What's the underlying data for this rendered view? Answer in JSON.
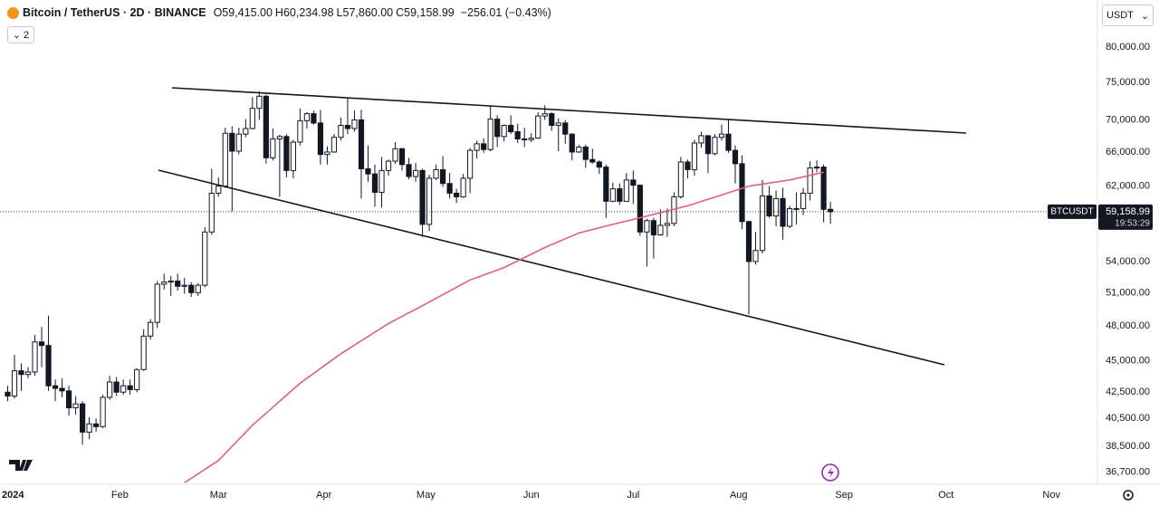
{
  "chart_data": {
    "type": "candlestick",
    "header": {
      "title": "Bitcoin / TetherUS · 2D · BINANCE",
      "fields": [
        {
          "label": "O",
          "value_label": "59,415.00"
        },
        {
          "label": "H",
          "value_label": "60,234.98"
        },
        {
          "label": "L",
          "value_label": "57,860.00"
        },
        {
          "label": "C",
          "value_label": "59,158.99"
        }
      ],
      "change_label": "−256.01 (−0.43%)"
    },
    "interval_button": "2",
    "currency": "USDT",
    "price_tag": {
      "symbol": "BTCUSDT",
      "value_label": "59,158.99",
      "countdown": "19:53:29"
    },
    "log_scale": true,
    "color_up": "#ffffff",
    "color_down": "#131722",
    "ma_color": "#e0607e",
    "xlim": [
      -1.13,
      160.0
    ],
    "xticks": [
      {
        "value": 1,
        "label": "2024"
      },
      {
        "value": 16.5,
        "label": "Feb"
      },
      {
        "value": 31,
        "label": "Mar"
      },
      {
        "value": 46.5,
        "label": "Apr"
      },
      {
        "value": 61.5,
        "label": "May"
      },
      {
        "value": 77,
        "label": "Jun"
      },
      {
        "value": 92,
        "label": "Jul"
      },
      {
        "value": 107.5,
        "label": "Aug"
      },
      {
        "value": 123,
        "label": "Sep"
      },
      {
        "value": 138,
        "label": "Oct"
      },
      {
        "value": 153.5,
        "label": "Nov"
      }
    ],
    "ylim": [
      35900,
      87200
    ],
    "yticks": [
      {
        "value": 80000,
        "label": "80,000.00"
      },
      {
        "value": 75000,
        "label": "75,000.00"
      },
      {
        "value": 70000,
        "label": "70,000.00"
      },
      {
        "value": 66000,
        "label": "66,000.00"
      },
      {
        "value": 62000,
        "label": "62,000.00"
      },
      {
        "value": 54000,
        "label": "54,000.00"
      },
      {
        "value": 51000,
        "label": "51,000.00"
      },
      {
        "value": 48000,
        "label": "48,000.00"
      },
      {
        "value": 45000,
        "label": "45,000.00"
      },
      {
        "value": 42500,
        "label": "42,500.00"
      },
      {
        "value": 40500,
        "label": "40,500.00"
      },
      {
        "value": 38500,
        "label": "38,500.00"
      },
      {
        "value": 36700,
        "label": "36,700.00"
      }
    ],
    "ohlc": [
      [
        42500,
        43000,
        41800,
        42200
      ],
      [
        42200,
        45500,
        42000,
        44200
      ],
      [
        44200,
        44800,
        42600,
        43900
      ],
      [
        43900,
        44500,
        43600,
        44100
      ],
      [
        44100,
        47200,
        43800,
        46600
      ],
      [
        46600,
        47900,
        44500,
        46300
      ],
      [
        46300,
        48900,
        42600,
        43000
      ],
      [
        43000,
        43500,
        41800,
        42800
      ],
      [
        42800,
        43600,
        42100,
        42600
      ],
      [
        42600,
        43000,
        40700,
        41300
      ],
      [
        41300,
        42200,
        40800,
        41600
      ],
      [
        41600,
        41800,
        38600,
        39500
      ],
      [
        39500,
        40600,
        39000,
        40100
      ],
      [
        40100,
        40500,
        39500,
        39900
      ],
      [
        39900,
        42300,
        39800,
        42100
      ],
      [
        42100,
        43800,
        41900,
        43300
      ],
      [
        43300,
        43700,
        42200,
        42500
      ],
      [
        42500,
        43500,
        42300,
        43000
      ],
      [
        43000,
        43500,
        42300,
        42700
      ],
      [
        42700,
        44400,
        42500,
        44300
      ],
      [
        44300,
        47700,
        44200,
        47100
      ],
      [
        47100,
        48600,
        46800,
        48300
      ],
      [
        48300,
        52100,
        47800,
        51800
      ],
      [
        51800,
        52800,
        51300,
        52000
      ],
      [
        52000,
        52600,
        50700,
        52100
      ],
      [
        52100,
        52800,
        51200,
        51600
      ],
      [
        51600,
        52400,
        50900,
        51700
      ],
      [
        51700,
        52000,
        50600,
        51000
      ],
      [
        51000,
        51900,
        50700,
        51700
      ],
      [
        51700,
        57500,
        51500,
        57000
      ],
      [
        57000,
        64000,
        56700,
        61200
      ],
      [
        61200,
        63000,
        60800,
        62000
      ],
      [
        62000,
        69000,
        61800,
        68300
      ],
      [
        68300,
        69200,
        59200,
        66100
      ],
      [
        66100,
        69000,
        65700,
        68200
      ],
      [
        68200,
        70100,
        67800,
        68900
      ],
      [
        68900,
        73000,
        68800,
        71500
      ],
      [
        71500,
        73800,
        70000,
        73100
      ],
      [
        73100,
        73300,
        64600,
        65300
      ],
      [
        65300,
        68900,
        65000,
        67600
      ],
      [
        67600,
        68100,
        60800,
        67900
      ],
      [
        67900,
        68200,
        63000,
        63800
      ],
      [
        63800,
        67500,
        62900,
        67200
      ],
      [
        67200,
        71500,
        66800,
        69900
      ],
      [
        69900,
        71000,
        68900,
        70800
      ],
      [
        70800,
        71200,
        69400,
        69600
      ],
      [
        69600,
        71300,
        64500,
        65700
      ],
      [
        65700,
        66700,
        64500,
        66000
      ],
      [
        66000,
        68200,
        65900,
        67800
      ],
      [
        67800,
        70300,
        67400,
        69300
      ],
      [
        69300,
        72800,
        68200,
        68900
      ],
      [
        68900,
        71200,
        68500,
        70000
      ],
      [
        70000,
        71300,
        60600,
        64000
      ],
      [
        64000,
        66800,
        62500,
        63400
      ],
      [
        63400,
        64500,
        59700,
        61300
      ],
      [
        61300,
        65400,
        59600,
        63800
      ],
      [
        63800,
        65100,
        63200,
        64900
      ],
      [
        64900,
        67200,
        64600,
        66400
      ],
      [
        66400,
        66500,
        63800,
        64500
      ],
      [
        64500,
        65300,
        62800,
        63100
      ],
      [
        63100,
        64700,
        62500,
        63800
      ],
      [
        63800,
        64000,
        56500,
        57800
      ],
      [
        57800,
        63300,
        57100,
        62900
      ],
      [
        62900,
        64500,
        62700,
        63900
      ],
      [
        63900,
        65500,
        61900,
        62300
      ],
      [
        62300,
        63500,
        60600,
        61200
      ],
      [
        61200,
        61700,
        60100,
        60800
      ],
      [
        60800,
        63400,
        60700,
        62900
      ],
      [
        62900,
        66500,
        61200,
        66200
      ],
      [
        66200,
        67400,
        65200,
        67000
      ],
      [
        67000,
        67700,
        65900,
        66300
      ],
      [
        66300,
        71900,
        66100,
        70100
      ],
      [
        70100,
        70600,
        66600,
        67900
      ],
      [
        67900,
        69400,
        67300,
        69300
      ],
      [
        69300,
        70600,
        68200,
        68500
      ],
      [
        68500,
        69500,
        67100,
        67600
      ],
      [
        67600,
        69000,
        66600,
        67500
      ],
      [
        67500,
        68300,
        67200,
        67700
      ],
      [
        67700,
        71000,
        67600,
        70500
      ],
      [
        70500,
        71900,
        70000,
        70800
      ],
      [
        70800,
        71000,
        68600,
        69300
      ],
      [
        69300,
        70200,
        66100,
        69600
      ],
      [
        69600,
        70000,
        67000,
        68200
      ],
      [
        68200,
        68300,
        65000,
        66000
      ],
      [
        66000,
        66900,
        65900,
        66600
      ],
      [
        66600,
        66900,
        64100,
        65100
      ],
      [
        65100,
        66400,
        64600,
        64800
      ],
      [
        64800,
        65000,
        63400,
        64200
      ],
      [
        64200,
        64500,
        58500,
        60300
      ],
      [
        60300,
        62400,
        60200,
        61700
      ],
      [
        61700,
        62300,
        59900,
        60300
      ],
      [
        60300,
        63500,
        60300,
        62700
      ],
      [
        62700,
        63800,
        60000,
        62100
      ],
      [
        62100,
        62200,
        56600,
        57000
      ],
      [
        57000,
        58400,
        53500,
        58200
      ],
      [
        58200,
        58500,
        54300,
        56700
      ],
      [
        56700,
        59400,
        56600,
        57700
      ],
      [
        57700,
        59500,
        56500,
        57900
      ],
      [
        57900,
        61300,
        57600,
        60800
      ],
      [
        60800,
        65400,
        60600,
        64800
      ],
      [
        64800,
        65100,
        62900,
        63900
      ],
      [
        63900,
        67500,
        63200,
        67100
      ],
      [
        67100,
        68500,
        66500,
        68000
      ],
      [
        68000,
        68100,
        63500,
        65800
      ],
      [
        65800,
        68200,
        65600,
        67800
      ],
      [
        67800,
        69400,
        67400,
        68200
      ],
      [
        68200,
        70000,
        65900,
        66200
      ],
      [
        66200,
        66800,
        62300,
        64600
      ],
      [
        64600,
        65600,
        57300,
        58100
      ],
      [
        58100,
        58200,
        49000,
        54000
      ],
      [
        54000,
        57000,
        53700,
        55100
      ],
      [
        55100,
        62700,
        54800,
        60900
      ],
      [
        60900,
        62000,
        58500,
        58700
      ],
      [
        58700,
        61500,
        57600,
        60600
      ],
      [
        60600,
        61800,
        56200,
        57600
      ],
      [
        57600,
        59800,
        57400,
        59500
      ],
      [
        59500,
        61300,
        57800,
        59500
      ],
      [
        59500,
        61800,
        58800,
        61200
      ],
      [
        61200,
        64900,
        60400,
        64100
      ],
      [
        64100,
        65000,
        63600,
        64200
      ],
      [
        64200,
        64500,
        58000,
        59415
      ],
      [
        59415,
        60234.98,
        57860,
        59158.99
      ]
    ],
    "moving_average": {
      "x": [
        26,
        31,
        36,
        43,
        49,
        56,
        61,
        68,
        73,
        79,
        84,
        89,
        93,
        100,
        105,
        109,
        115,
        120
      ],
      "values": [
        36000,
        37500,
        40000,
        43200,
        45600,
        48200,
        49800,
        52200,
        53400,
        55400,
        56900,
        57800,
        58500,
        59800,
        61000,
        62000,
        62700,
        63600
      ]
    }
  }
}
